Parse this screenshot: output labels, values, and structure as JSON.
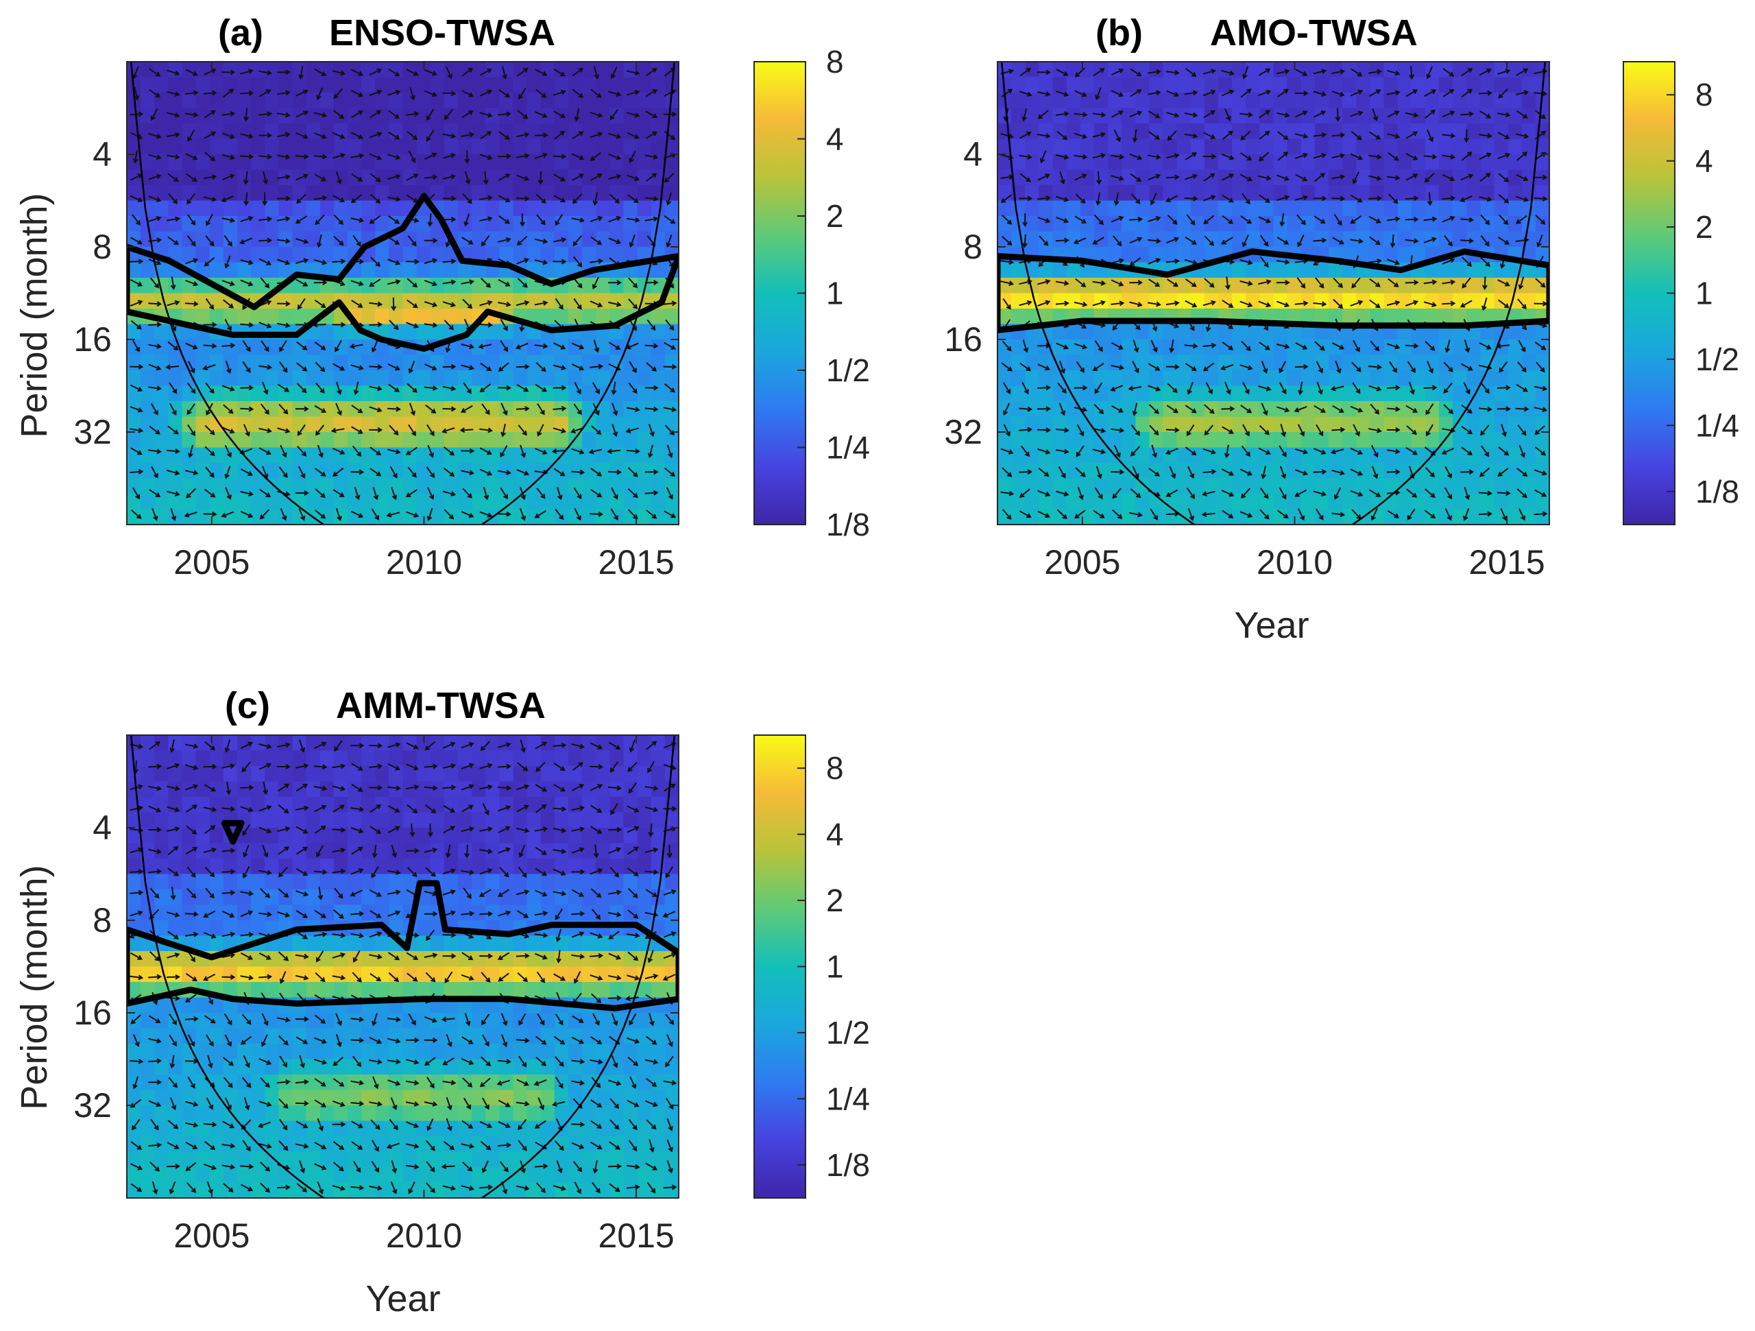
{
  "colors": {
    "colormap": [
      "#3e26a8",
      "#4743e0",
      "#2e7bf2",
      "#1aa7dd",
      "#12bfb9",
      "#5fca77",
      "#b8c43a",
      "#f5ba38",
      "#f9fb15"
    ],
    "contour": "#000000",
    "axis": "#262626"
  },
  "chart_data": [
    {
      "type": "heatmap",
      "panel": "(a)",
      "title": "ENSO-TWSA",
      "xlabel": "",
      "ylabel": "Period (month)",
      "xlim": [
        2003,
        2016
      ],
      "xticks": [
        2005,
        2010,
        2015
      ],
      "ylim_log2": [
        1,
        6
      ],
      "yticks": [
        {
          "label": "4",
          "value": 4
        },
        {
          "label": "8",
          "value": 8
        },
        {
          "label": "16",
          "value": 16
        },
        {
          "label": "32",
          "value": 32
        }
      ],
      "colorbar": {
        "ticks": [
          "8",
          "4",
          "2",
          "1",
          "1/2",
          "1/4",
          "1/8"
        ],
        "range_log2": [
          -3,
          3
        ]
      },
      "bands": [
        {
          "period_log2_center": 3.6,
          "width": 0.35,
          "power_log2": 1.6,
          "x_from": 2003,
          "x_to": 2016
        },
        {
          "period_log2_center": 4.9,
          "width": 0.45,
          "power_log2": 1.8,
          "x_from": 2005,
          "x_to": 2013
        },
        {
          "period_log2_center": 3.7,
          "width": 0.25,
          "power_log2": 2.3,
          "x_from": 2008.5,
          "x_to": 2011.5
        }
      ],
      "significance_contours": [
        {
          "points": [
            [
              2003,
              3.0
            ],
            [
              2004,
              3.15
            ],
            [
              2005,
              3.4
            ],
            [
              2006,
              3.65
            ],
            [
              2007,
              3.3
            ],
            [
              2008,
              3.35
            ],
            [
              2008.6,
              3.0
            ],
            [
              2009.5,
              2.8
            ],
            [
              2010,
              2.45
            ],
            [
              2010.4,
              2.7
            ],
            [
              2010.9,
              3.15
            ],
            [
              2012,
              3.2
            ],
            [
              2013,
              3.4
            ],
            [
              2014,
              3.25
            ],
            [
              2016,
              3.1
            ],
            [
              2015.6,
              3.6
            ],
            [
              2014.5,
              3.85
            ],
            [
              2013,
              3.9
            ],
            [
              2011.5,
              3.7
            ],
            [
              2011,
              3.95
            ],
            [
              2010,
              4.1
            ],
            [
              2009,
              4.0
            ],
            [
              2008.5,
              3.9
            ],
            [
              2008,
              3.6
            ],
            [
              2007,
              3.95
            ],
            [
              2005.5,
              3.95
            ],
            [
              2003,
              3.7
            ]
          ]
        }
      ]
    },
    {
      "type": "heatmap",
      "panel": "(b)",
      "title": "AMO-TWSA",
      "xlabel": "Year",
      "ylabel": "",
      "xlim": [
        2003,
        2016
      ],
      "xticks": [
        2005,
        2010,
        2015
      ],
      "ylim_log2": [
        1,
        6
      ],
      "yticks": [
        {
          "label": "4",
          "value": 4
        },
        {
          "label": "8",
          "value": 8
        },
        {
          "label": "16",
          "value": 16
        },
        {
          "label": "32",
          "value": 32
        }
      ],
      "colorbar": {
        "ticks": [
          "8",
          "4",
          "2",
          "1",
          "1/2",
          "1/4",
          "1/8"
        ],
        "range_log2": [
          -3.5,
          3.5
        ]
      },
      "bands": [
        {
          "period_log2_center": 3.55,
          "width": 0.3,
          "power_log2": 3.2,
          "x_from": 2003,
          "x_to": 2016
        },
        {
          "period_log2_center": 4.9,
          "width": 0.45,
          "power_log2": 1.5,
          "x_from": 2007,
          "x_to": 2013
        }
      ],
      "significance_contours": [
        {
          "points": [
            [
              2003,
              3.1
            ],
            [
              2005,
              3.15
            ],
            [
              2007,
              3.3
            ],
            [
              2009,
              3.05
            ],
            [
              2011,
              3.15
            ],
            [
              2012.5,
              3.25
            ],
            [
              2014,
              3.05
            ],
            [
              2016,
              3.2
            ],
            [
              2016,
              3.8
            ],
            [
              2014,
              3.85
            ],
            [
              2011,
              3.85
            ],
            [
              2008,
              3.8
            ],
            [
              2005,
              3.8
            ],
            [
              2003,
              3.9
            ]
          ]
        }
      ]
    },
    {
      "type": "heatmap",
      "panel": "(c)",
      "title": "AMM-TWSA",
      "xlabel": "Year",
      "ylabel": "Period (month)",
      "xlim": [
        2003,
        2016
      ],
      "xticks": [
        2005,
        2010,
        2015
      ],
      "ylim_log2": [
        1,
        6
      ],
      "yticks": [
        {
          "label": "4",
          "value": 4
        },
        {
          "label": "8",
          "value": 8
        },
        {
          "label": "16",
          "value": 16
        },
        {
          "label": "32",
          "value": 32
        }
      ],
      "colorbar": {
        "ticks": [
          "8",
          "4",
          "2",
          "1",
          "1/2",
          "1/4",
          "1/8"
        ],
        "range_log2": [
          -3.5,
          3.5
        ]
      },
      "bands": [
        {
          "period_log2_center": 3.55,
          "width": 0.3,
          "power_log2": 2.9,
          "x_from": 2003,
          "x_to": 2016
        },
        {
          "period_log2_center": 4.9,
          "width": 0.45,
          "power_log2": 1.2,
          "x_from": 2007,
          "x_to": 2012.5
        }
      ],
      "significance_contours": [
        {
          "points": [
            [
              2003,
              3.1
            ],
            [
              2004,
              3.25
            ],
            [
              2005,
              3.4
            ],
            [
              2006,
              3.25
            ],
            [
              2007,
              3.1
            ],
            [
              2009,
              3.05
            ],
            [
              2009.6,
              3.3
            ],
            [
              2009.9,
              2.6
            ],
            [
              2010.3,
              2.6
            ],
            [
              2010.5,
              3.1
            ],
            [
              2012,
              3.15
            ],
            [
              2013,
              3.05
            ],
            [
              2015,
              3.05
            ],
            [
              2016,
              3.35
            ],
            [
              2016,
              3.85
            ],
            [
              2014.5,
              3.95
            ],
            [
              2012,
              3.85
            ],
            [
              2010,
              3.85
            ],
            [
              2007,
              3.9
            ],
            [
              2005.5,
              3.85
            ],
            [
              2004.5,
              3.75
            ],
            [
              2003,
              3.9
            ]
          ]
        },
        {
          "points": [
            [
              2005.3,
              1.95
            ],
            [
              2005.7,
              1.95
            ],
            [
              2005.5,
              2.15
            ]
          ]
        }
      ]
    }
  ]
}
